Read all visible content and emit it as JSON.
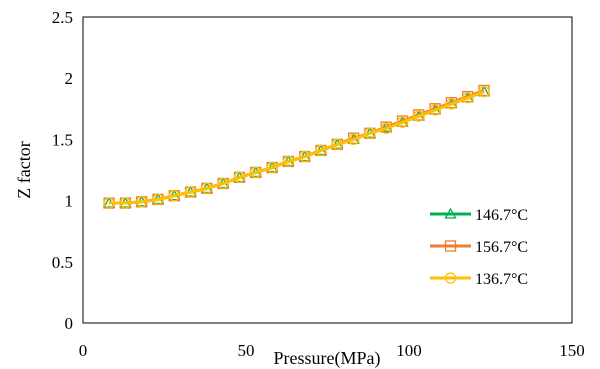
{
  "chart_data": {
    "type": "line",
    "title": "",
    "xlabel": "Pressure(MPa)",
    "ylabel": "Z factor",
    "xlim": [
      0,
      150
    ],
    "ylim": [
      0,
      2.5
    ],
    "xticks": [
      "0",
      "50",
      "100",
      "150"
    ],
    "yticks": [
      "0",
      "0.5",
      "1",
      "1.5",
      "2",
      "2.5"
    ],
    "grid": false,
    "legend_position": "bottom-right",
    "series": [
      {
        "name": "146.7°C",
        "color": "#00b050",
        "marker": "triangle",
        "x": [
          8,
          13,
          18,
          23,
          28,
          33,
          38,
          43,
          48,
          53,
          58,
          63,
          68,
          73,
          78,
          83,
          88,
          93,
          98,
          103,
          108,
          113,
          118,
          123
        ],
        "y": [
          0.98,
          0.98,
          0.99,
          1.01,
          1.04,
          1.07,
          1.1,
          1.14,
          1.19,
          1.23,
          1.27,
          1.32,
          1.36,
          1.41,
          1.46,
          1.5,
          1.55,
          1.6,
          1.64,
          1.69,
          1.74,
          1.79,
          1.84,
          1.89
        ]
      },
      {
        "name": "156.7°C",
        "color": "#ed7d31",
        "marker": "square",
        "x": [
          8,
          13,
          18,
          23,
          28,
          33,
          38,
          43,
          48,
          53,
          58,
          63,
          68,
          73,
          78,
          83,
          88,
          93,
          98,
          103,
          108,
          113,
          118,
          123
        ],
        "y": [
          0.98,
          0.98,
          0.99,
          1.01,
          1.04,
          1.07,
          1.1,
          1.14,
          1.19,
          1.23,
          1.27,
          1.32,
          1.36,
          1.41,
          1.46,
          1.51,
          1.55,
          1.6,
          1.65,
          1.7,
          1.75,
          1.8,
          1.85,
          1.9
        ]
      },
      {
        "name": "136.7°C",
        "color": "#ffc000",
        "marker": "circle",
        "x": [
          8,
          13,
          18,
          23,
          28,
          33,
          38,
          43,
          48,
          53,
          58,
          63,
          68,
          73,
          78,
          83,
          88,
          93,
          98,
          103,
          108,
          113,
          118,
          123
        ],
        "y": [
          0.98,
          0.98,
          0.99,
          1.01,
          1.04,
          1.07,
          1.1,
          1.14,
          1.19,
          1.23,
          1.27,
          1.32,
          1.36,
          1.41,
          1.46,
          1.5,
          1.55,
          1.59,
          1.64,
          1.69,
          1.74,
          1.79,
          1.84,
          1.89
        ]
      }
    ]
  }
}
